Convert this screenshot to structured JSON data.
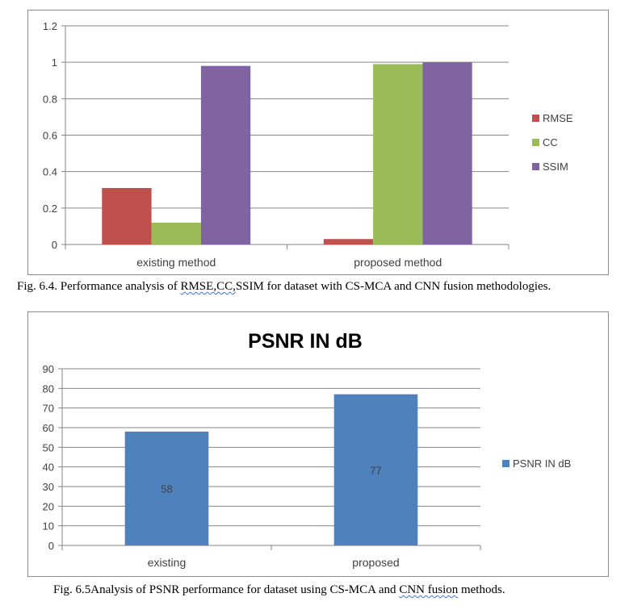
{
  "chart_data": [
    {
      "type": "bar",
      "title": "",
      "categories": [
        "existing method",
        "proposed method"
      ],
      "series": [
        {
          "name": "RMSE",
          "values": [
            0.31,
            0.03
          ],
          "color": "#c0504d"
        },
        {
          "name": "CC",
          "values": [
            0.12,
            0.99
          ],
          "color": "#9bbb59"
        },
        {
          "name": "SSIM",
          "values": [
            0.98,
            1.0
          ],
          "color": "#8064a2"
        }
      ],
      "yticks": [
        "0",
        "0.2",
        "0.4",
        "0.6",
        "0.8",
        "1",
        "1.2"
      ],
      "ylim": [
        0,
        1.2
      ],
      "grid": true,
      "legend": "right"
    },
    {
      "type": "bar",
      "title": "PSNR IN dB",
      "categories": [
        "existing",
        "proposed"
      ],
      "series": [
        {
          "name": "PSNR IN dB",
          "values": [
            58,
            77
          ],
          "data_labels": [
            "58",
            "77"
          ],
          "color": "#4f81bd"
        }
      ],
      "yticks": [
        "0",
        "10",
        "20",
        "30",
        "40",
        "50",
        "60",
        "70",
        "80",
        "90"
      ],
      "ylim": [
        0,
        90
      ],
      "grid": true,
      "legend": "right"
    }
  ],
  "captions": {
    "fig1_before": "Fig. 6.4. Performance analysis of ",
    "fig1_squiggle": "RMSE,CC,",
    "fig1_after": "SSIM for dataset with CS-MCA and CNN fusion methodologies.",
    "fig2_before": "Fig. 6.5Analysis of PSNR performance for dataset using CS-MCA and ",
    "fig2_squiggle": "CNN  fusion",
    "fig2_after": " methods."
  }
}
